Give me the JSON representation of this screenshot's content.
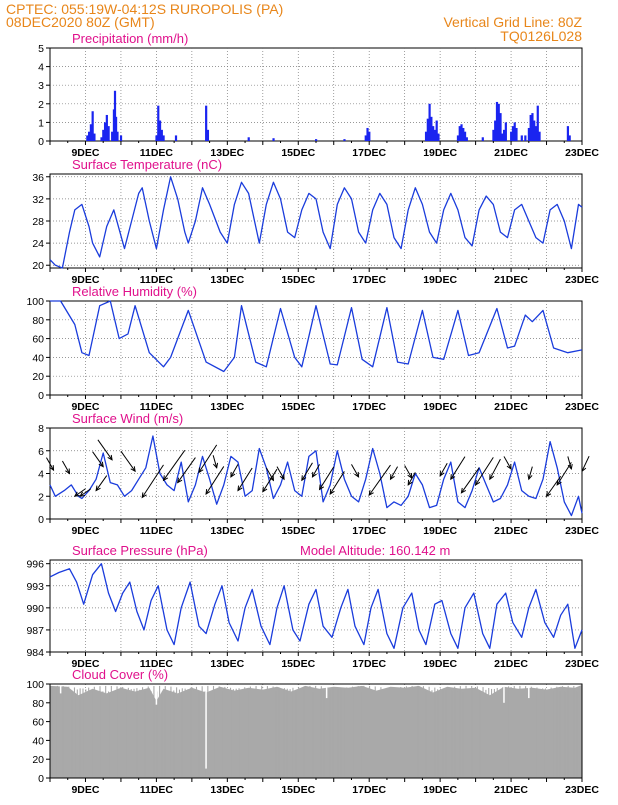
{
  "header": {
    "line1": "CPTEC:   055:19W-04:12S   RUROPOLIS (PA)",
    "line2": "08DEC2020 80Z (GMT)",
    "right1": "Vertical Grid Line: 80Z",
    "right2": "TQ0126L028"
  },
  "x_labels": [
    "9DEC",
    "11DEC",
    "13DEC",
    "15DEC",
    "17DEC",
    "19DEC",
    "21DEC",
    "23DEC"
  ],
  "chart_data": [
    {
      "id": "precip",
      "type": "bar",
      "title": "Precipitation (mm/h)",
      "ylim": [
        0,
        5
      ],
      "yticks": [
        0,
        1,
        2,
        3,
        4,
        5
      ],
      "x_unit": "days since start",
      "x_range": [
        0,
        15
      ],
      "bars": [
        [
          1.05,
          0.3
        ],
        [
          1.1,
          0.5
        ],
        [
          1.15,
          0.9
        ],
        [
          1.2,
          1.6
        ],
        [
          1.25,
          0.4
        ],
        [
          1.45,
          0.2
        ],
        [
          1.5,
          0.6
        ],
        [
          1.55,
          1.0
        ],
        [
          1.6,
          1.4
        ],
        [
          1.65,
          0.8
        ],
        [
          1.75,
          0.5
        ],
        [
          1.8,
          1.7
        ],
        [
          1.83,
          2.7
        ],
        [
          1.86,
          1.3
        ],
        [
          1.9,
          0.5
        ],
        [
          2.0,
          0.3
        ],
        [
          3.0,
          0.3
        ],
        [
          3.05,
          1.9
        ],
        [
          3.1,
          1.1
        ],
        [
          3.15,
          0.6
        ],
        [
          3.2,
          0.3
        ],
        [
          3.55,
          0.3
        ],
        [
          4.4,
          1.9
        ],
        [
          4.45,
          0.6
        ],
        [
          5.6,
          0.2
        ],
        [
          6.3,
          0.15
        ],
        [
          7.5,
          0.1
        ],
        [
          8.3,
          0.1
        ],
        [
          8.9,
          0.3
        ],
        [
          8.95,
          0.7
        ],
        [
          9.0,
          0.5
        ],
        [
          10.6,
          0.5
        ],
        [
          10.65,
          1.2
        ],
        [
          10.7,
          2.0
        ],
        [
          10.75,
          1.3
        ],
        [
          10.8,
          0.8
        ],
        [
          10.85,
          0.6
        ],
        [
          10.9,
          1.1
        ],
        [
          10.95,
          0.4
        ],
        [
          11.5,
          0.3
        ],
        [
          11.55,
          0.8
        ],
        [
          11.6,
          0.9
        ],
        [
          11.65,
          0.7
        ],
        [
          11.7,
          0.5
        ],
        [
          11.75,
          0.2
        ],
        [
          12.2,
          0.2
        ],
        [
          12.5,
          0.6
        ],
        [
          12.55,
          1.1
        ],
        [
          12.6,
          2.1
        ],
        [
          12.65,
          2.0
        ],
        [
          12.7,
          1.5
        ],
        [
          12.75,
          0.4
        ],
        [
          12.8,
          0.6
        ],
        [
          12.85,
          1.0
        ],
        [
          13.0,
          0.5
        ],
        [
          13.05,
          0.8
        ],
        [
          13.1,
          1.0
        ],
        [
          13.15,
          0.7
        ],
        [
          13.3,
          0.3
        ],
        [
          13.4,
          0.3
        ],
        [
          13.5,
          0.7
        ],
        [
          13.55,
          1.4
        ],
        [
          13.6,
          1.5
        ],
        [
          13.65,
          1.1
        ],
        [
          13.7,
          0.8
        ],
        [
          13.75,
          1.9
        ],
        [
          13.8,
          0.5
        ],
        [
          14.6,
          0.8
        ],
        [
          14.65,
          0.3
        ]
      ]
    },
    {
      "id": "temp",
      "type": "line",
      "title": "Surface Temperature (nC)",
      "ylim": [
        19.5,
        36.5
      ],
      "yticks": [
        20,
        24,
        28,
        32,
        36
      ],
      "x": [
        0,
        0.15,
        0.35,
        0.55,
        0.7,
        0.9,
        1.1,
        1.2,
        1.4,
        1.6,
        1.8,
        2.1,
        2.3,
        2.5,
        2.6,
        2.8,
        3.0,
        3.2,
        3.4,
        3.6,
        3.8,
        3.9,
        4.1,
        4.3,
        4.5,
        4.8,
        5.0,
        5.2,
        5.4,
        5.6,
        5.8,
        5.9,
        6.1,
        6.3,
        6.5,
        6.7,
        6.9,
        7.1,
        7.3,
        7.5,
        7.7,
        7.9,
        8.1,
        8.3,
        8.5,
        8.7,
        8.9,
        9.1,
        9.3,
        9.5,
        9.7,
        9.9,
        10.1,
        10.3,
        10.5,
        10.7,
        10.9,
        11.1,
        11.3,
        11.5,
        11.7,
        11.9,
        12.1,
        12.3,
        12.5,
        12.7,
        12.9,
        13.1,
        13.3,
        13.5,
        13.7,
        13.9,
        14.1,
        14.3,
        14.5,
        14.7,
        14.9,
        15.0
      ],
      "y": [
        21,
        20,
        19.5,
        26,
        30,
        31,
        27,
        24,
        21.5,
        27,
        30,
        23,
        28,
        33,
        34,
        28,
        23,
        30,
        36,
        32,
        26,
        24,
        28,
        34,
        31,
        26,
        24,
        31,
        35,
        33,
        27,
        24,
        31,
        35,
        32,
        26,
        25,
        30,
        33,
        32,
        26,
        23,
        31,
        34,
        32,
        26,
        24,
        30,
        33,
        31,
        25,
        23,
        30,
        34,
        31,
        26,
        24,
        30,
        33,
        30,
        25,
        23.5,
        30,
        32.5,
        31,
        26,
        25,
        30,
        31,
        28,
        25,
        24,
        30,
        31,
        28,
        23,
        31,
        30.5
      ]
    },
    {
      "id": "rh",
      "type": "line",
      "title": "Relative Humidity (%)",
      "ylim": [
        0,
        100
      ],
      "yticks": [
        0,
        20,
        40,
        60,
        80,
        100
      ],
      "x": [
        0,
        0.3,
        0.7,
        0.9,
        1.1,
        1.4,
        1.7,
        1.95,
        2.2,
        2.4,
        2.8,
        3.2,
        3.4,
        3.9,
        4.4,
        4.9,
        5.2,
        5.4,
        5.8,
        6.1,
        6.5,
        6.9,
        7.1,
        7.5,
        7.9,
        8.1,
        8.5,
        8.8,
        9.1,
        9.5,
        9.8,
        10.1,
        10.5,
        10.8,
        11.1,
        11.5,
        11.8,
        12.1,
        12.6,
        12.9,
        13.1,
        13.4,
        13.6,
        13.9,
        14.2,
        14.6,
        15.0
      ],
      "y": [
        100,
        100,
        75,
        45,
        42,
        95,
        100,
        60,
        65,
        95,
        45,
        30,
        40,
        90,
        35,
        25,
        40,
        95,
        35,
        30,
        92,
        40,
        30,
        95,
        33,
        32,
        93,
        38,
        30,
        93,
        35,
        33,
        90,
        40,
        38,
        90,
        42,
        45,
        92,
        50,
        52,
        85,
        78,
        90,
        50,
        45,
        48
      ]
    },
    {
      "id": "wind",
      "type": "line",
      "title": "Surface Wind (m/s)",
      "ylim": [
        0,
        8
      ],
      "yticks": [
        0,
        2,
        4,
        6,
        8
      ],
      "x": [
        0,
        0.15,
        0.4,
        0.6,
        0.8,
        0.9,
        1.1,
        1.3,
        1.5,
        1.7,
        1.9,
        2.1,
        2.3,
        2.5,
        2.7,
        2.9,
        3.1,
        3.3,
        3.5,
        3.7,
        3.9,
        4.1,
        4.3,
        4.5,
        4.7,
        4.9,
        5.1,
        5.3,
        5.5,
        5.7,
        5.9,
        6.1,
        6.3,
        6.5,
        6.7,
        6.9,
        7.1,
        7.3,
        7.5,
        7.7,
        7.9,
        8.1,
        8.3,
        8.5,
        8.7,
        8.9,
        9.1,
        9.3,
        9.5,
        9.7,
        9.9,
        10.1,
        10.3,
        10.5,
        10.7,
        10.9,
        11.1,
        11.3,
        11.5,
        11.7,
        11.9,
        12.1,
        12.3,
        12.5,
        12.7,
        12.9,
        13.1,
        13.3,
        13.5,
        13.7,
        13.9,
        14.1,
        14.3,
        14.5,
        14.7,
        14.9,
        15.0
      ],
      "y": [
        3,
        2,
        2.5,
        3,
        2,
        1.8,
        2.5,
        3.5,
        5.8,
        3.2,
        3,
        2,
        2.5,
        3.5,
        4.5,
        7.3,
        4,
        3,
        2.5,
        5,
        1.5,
        3,
        5.5,
        3.5,
        1.3,
        3,
        5.5,
        5,
        2,
        2.5,
        6.2,
        4.5,
        1.8,
        3,
        5,
        2.5,
        2,
        5.5,
        6,
        1.5,
        3,
        6,
        3.5,
        2,
        1.5,
        3.5,
        6.2,
        4,
        1,
        1.5,
        1.2,
        2,
        4,
        3,
        1,
        1.2,
        3.5,
        5,
        1.5,
        1,
        2.5,
        4.5,
        3,
        1.5,
        1.8,
        3,
        5,
        2.5,
        2,
        1.8,
        3.5,
        6.8,
        4.5,
        1.5,
        0.3,
        2,
        0.5
      ],
      "arrows": [
        [
          0.1,
          4.3,
          -0.2,
          0.5
        ],
        [
          0.55,
          4.0,
          -0.2,
          0.5
        ],
        [
          0.7,
          2.0,
          0.3,
          0.3
        ],
        [
          0.85,
          2.0,
          0.3,
          0.3
        ],
        [
          1.3,
          2.5,
          0.3,
          0.6
        ],
        [
          1.5,
          4.6,
          -0.3,
          0.6
        ],
        [
          1.75,
          5.2,
          -0.4,
          0.8
        ],
        [
          2.4,
          4.2,
          -0.4,
          0.8
        ],
        [
          2.6,
          1.9,
          0.6,
          1.3
        ],
        [
          3.2,
          3.4,
          0.6,
          1.2
        ],
        [
          3.6,
          3.2,
          0.5,
          1.0
        ],
        [
          4.2,
          4.1,
          0.5,
          1.1
        ],
        [
          4.4,
          2.2,
          0.5,
          1.1
        ],
        [
          4.7,
          4.5,
          -0.1,
          0.5
        ],
        [
          5.1,
          3.7,
          0.2,
          0.5
        ],
        [
          5.3,
          2.5,
          0.4,
          0.9
        ],
        [
          6.0,
          2.4,
          0.4,
          0.9
        ],
        [
          6.3,
          3.4,
          -0.2,
          0.5
        ],
        [
          6.6,
          3.5,
          -0.2,
          0.5
        ],
        [
          7.1,
          3.4,
          0.3,
          0.7
        ],
        [
          7.4,
          3.7,
          0.2,
          0.5
        ],
        [
          7.6,
          2.6,
          0.4,
          0.9
        ],
        [
          7.9,
          2.2,
          0.4,
          0.9
        ],
        [
          8.7,
          3.7,
          -0.2,
          0.5
        ],
        [
          9.0,
          2.1,
          0.6,
          1.2
        ],
        [
          9.6,
          3.5,
          0.2,
          0.5
        ],
        [
          10.1,
          3.0,
          0.2,
          0.5
        ],
        [
          10.2,
          3.6,
          -0.2,
          0.5
        ],
        [
          11.0,
          3.8,
          0.2,
          0.5
        ],
        [
          11.3,
          3.5,
          0.4,
          0.9
        ],
        [
          11.6,
          2.3,
          0.5,
          1.0
        ],
        [
          12.0,
          3.0,
          0.5,
          1.1
        ],
        [
          12.4,
          3.5,
          0.3,
          0.8
        ],
        [
          13.0,
          4.4,
          -0.2,
          0.5
        ],
        [
          13.5,
          3.5,
          0.1,
          0.5
        ],
        [
          14.0,
          2.0,
          0.4,
          0.8
        ],
        [
          14.3,
          3.0,
          0.4,
          0.9
        ],
        [
          14.7,
          4.4,
          -0.1,
          0.5
        ],
        [
          15.0,
          4.2,
          0.2,
          0.6
        ]
      ]
    },
    {
      "id": "press",
      "type": "line",
      "title": "Surface Pressure (hPa)",
      "subtitle": "Model Altitude: 160.142 m",
      "ylim": [
        984,
        996.5
      ],
      "yticks": [
        984,
        987,
        990,
        993,
        996
      ],
      "x": [
        0,
        0.25,
        0.55,
        0.75,
        0.95,
        1.2,
        1.45,
        1.65,
        1.85,
        2.05,
        2.25,
        2.45,
        2.65,
        2.85,
        3.05,
        3.3,
        3.5,
        3.7,
        3.95,
        4.2,
        4.4,
        4.65,
        4.85,
        5.05,
        5.3,
        5.5,
        5.7,
        5.95,
        6.2,
        6.4,
        6.6,
        6.85,
        7.05,
        7.3,
        7.5,
        7.7,
        7.95,
        8.2,
        8.4,
        8.6,
        8.85,
        9.05,
        9.25,
        9.5,
        9.7,
        9.95,
        10.2,
        10.4,
        10.6,
        10.85,
        11.05,
        11.3,
        11.5,
        11.7,
        11.95,
        12.2,
        12.4,
        12.6,
        12.85,
        13.05,
        13.3,
        13.5,
        13.7,
        13.95,
        14.2,
        14.4,
        14.6,
        14.8,
        15.0
      ],
      "y": [
        994.2,
        994.8,
        995.3,
        993.5,
        990.5,
        994.5,
        996,
        992,
        989.5,
        992,
        993.5,
        989.5,
        987,
        991,
        993,
        987,
        985,
        990,
        993.5,
        987.5,
        986.5,
        990.5,
        993,
        988,
        985.5,
        990,
        992.5,
        987.5,
        985,
        990,
        993,
        987,
        985.5,
        990.5,
        992.5,
        987.5,
        986,
        990,
        992.5,
        987.5,
        985,
        990,
        992.5,
        986.5,
        984.5,
        990,
        992,
        987,
        985,
        990.5,
        991,
        986.5,
        984.5,
        990,
        992,
        986.5,
        984.5,
        990.5,
        992,
        988,
        986,
        990,
        992.5,
        988,
        986,
        989,
        990.5,
        984.5,
        987
      ]
    },
    {
      "id": "cloud",
      "type": "area",
      "title": "Cloud Cover (%)",
      "ylim": [
        0,
        100
      ],
      "yticks": [
        0,
        20,
        40,
        60,
        80,
        100
      ],
      "x": [
        0,
        0.5,
        0.8,
        1.2,
        1.6,
        2.0,
        2.4,
        2.8,
        3.0,
        3.2,
        3.6,
        4.0,
        4.4,
        4.8,
        5.2,
        5.6,
        6.0,
        6.4,
        6.8,
        7.2,
        7.6,
        8.0,
        8.4,
        8.8,
        9.2,
        9.6,
        10.0,
        10.4,
        10.8,
        11.2,
        11.6,
        12.0,
        12.4,
        12.8,
        13.2,
        13.6,
        14.0,
        14.4,
        14.8,
        15.0
      ],
      "y": [
        98,
        97,
        88,
        95,
        90,
        96,
        92,
        96,
        82,
        95,
        90,
        96,
        91,
        97,
        93,
        96,
        94,
        97,
        92,
        98,
        95,
        97,
        96,
        98,
        93,
        97,
        96,
        98,
        91,
        97,
        95,
        96,
        88,
        97,
        95,
        96,
        94,
        97,
        96,
        99
      ],
      "dips": [
        [
          4.4,
          10
        ],
        [
          0.3,
          90
        ],
        [
          3.0,
          78
        ],
        [
          7.8,
          85
        ],
        [
          12.8,
          80
        ],
        [
          13.5,
          85
        ]
      ]
    }
  ]
}
